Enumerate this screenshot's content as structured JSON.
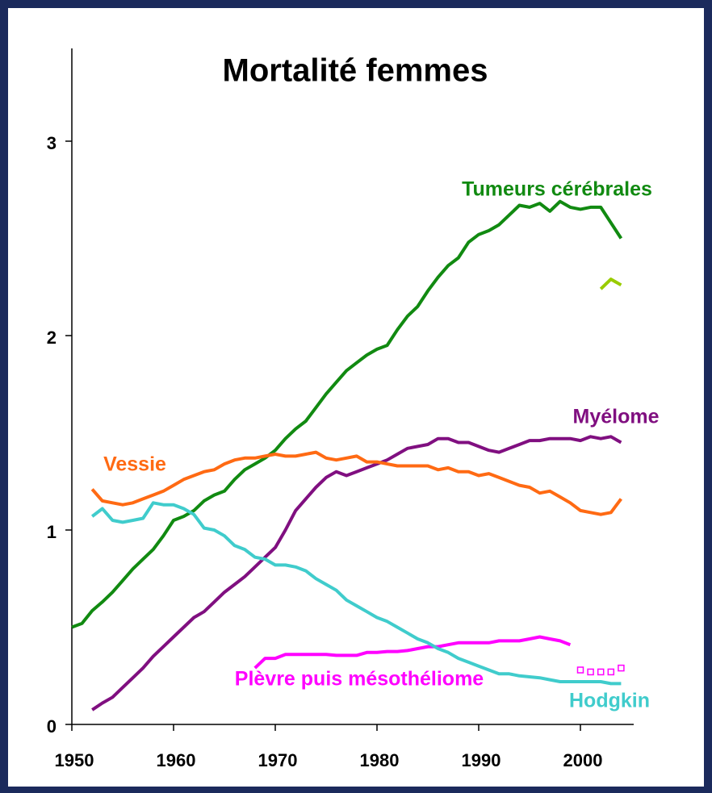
{
  "chart_data": {
    "type": "line",
    "title": "Mortalité femmes",
    "x": [
      1950,
      1951,
      1952,
      1953,
      1954,
      1955,
      1956,
      1957,
      1958,
      1959,
      1960,
      1961,
      1962,
      1963,
      1964,
      1965,
      1966,
      1967,
      1968,
      1969,
      1970,
      1971,
      1972,
      1973,
      1974,
      1975,
      1976,
      1977,
      1978,
      1979,
      1980,
      1981,
      1982,
      1983,
      1984,
      1985,
      1986,
      1987,
      1988,
      1989,
      1990,
      1991,
      1992,
      1993,
      1994,
      1995,
      1996,
      1997,
      1998,
      1999,
      2000,
      2001,
      2002,
      2003,
      2004
    ],
    "xlim": [
      1950,
      2005
    ],
    "xticks": [
      1950,
      1960,
      1970,
      1980,
      1990,
      2000
    ],
    "ylim": [
      0,
      3.5
    ],
    "yticks": [
      0,
      1,
      2,
      3
    ],
    "series": [
      {
        "name": "Tumeurs cérébrales",
        "color": "#118a11",
        "values": [
          0.5,
          0.52,
          0.585,
          0.63,
          0.68,
          0.74,
          0.8,
          0.85,
          0.9,
          0.97,
          1.05,
          1.07,
          1.1,
          1.15,
          1.18,
          1.2,
          1.26,
          1.31,
          1.34,
          1.37,
          1.41,
          1.47,
          1.52,
          1.56,
          1.63,
          1.7,
          1.76,
          1.82,
          1.86,
          1.9,
          1.93,
          1.95,
          2.03,
          2.1,
          2.15,
          2.23,
          2.3,
          2.36,
          2.4,
          2.48,
          2.52,
          2.54,
          2.57,
          2.62,
          2.67,
          2.66,
          2.68,
          2.64,
          2.69,
          2.66,
          2.65,
          2.66,
          2.66,
          2.58,
          2.5
        ]
      },
      {
        "name": "Myélome",
        "color": "#800f80",
        "values": [
          null,
          null,
          0.075,
          0.11,
          0.14,
          0.19,
          0.24,
          0.29,
          0.35,
          0.4,
          0.45,
          0.5,
          0.55,
          0.58,
          0.63,
          0.68,
          0.72,
          0.76,
          0.81,
          0.86,
          0.91,
          1.0,
          1.1,
          1.16,
          1.22,
          1.27,
          1.3,
          1.28,
          1.3,
          1.32,
          1.34,
          1.36,
          1.39,
          1.42,
          1.43,
          1.44,
          1.47,
          1.47,
          1.45,
          1.45,
          1.43,
          1.41,
          1.4,
          1.42,
          1.44,
          1.46,
          1.46,
          1.47,
          1.47,
          1.47,
          1.46,
          1.48,
          1.47,
          1.48,
          1.45
        ]
      },
      {
        "name": "Vessie",
        "color": "#ff6a13",
        "values": [
          null,
          null,
          1.21,
          1.15,
          1.14,
          1.13,
          1.14,
          1.16,
          1.18,
          1.2,
          1.23,
          1.26,
          1.28,
          1.3,
          1.31,
          1.34,
          1.36,
          1.37,
          1.37,
          1.38,
          1.39,
          1.38,
          1.38,
          1.39,
          1.4,
          1.37,
          1.36,
          1.37,
          1.38,
          1.35,
          1.35,
          1.34,
          1.33,
          1.33,
          1.33,
          1.33,
          1.31,
          1.32,
          1.3,
          1.3,
          1.28,
          1.29,
          1.27,
          1.25,
          1.23,
          1.22,
          1.19,
          1.2,
          1.17,
          1.14,
          1.1,
          1.09,
          1.08,
          1.09,
          1.16
        ]
      },
      {
        "name": "Plèvre puis mésothéliome",
        "color": "#ff00ff",
        "values": [
          null,
          null,
          null,
          null,
          null,
          null,
          null,
          null,
          null,
          null,
          null,
          null,
          null,
          null,
          null,
          null,
          null,
          null,
          0.29,
          0.34,
          0.34,
          0.36,
          0.36,
          0.36,
          0.36,
          0.36,
          0.355,
          0.355,
          0.355,
          0.37,
          0.37,
          0.375,
          0.375,
          0.38,
          0.39,
          0.4,
          0.4,
          0.41,
          0.42,
          0.42,
          0.42,
          0.42,
          0.43,
          0.43,
          0.43,
          0.44,
          0.45,
          0.44,
          0.43,
          0.41,
          null,
          null,
          null,
          null,
          null
        ]
      },
      {
        "name": "Hodgkin",
        "color": "#40cccc",
        "values": [
          null,
          null,
          1.07,
          1.11,
          1.05,
          1.04,
          1.05,
          1.06,
          1.14,
          1.13,
          1.13,
          1.11,
          1.08,
          1.01,
          1.0,
          0.97,
          0.92,
          0.9,
          0.86,
          0.85,
          0.82,
          0.82,
          0.81,
          0.79,
          0.75,
          0.72,
          0.69,
          0.64,
          0.61,
          0.58,
          0.55,
          0.53,
          0.5,
          0.47,
          0.44,
          0.42,
          0.39,
          0.37,
          0.34,
          0.32,
          0.3,
          0.28,
          0.26,
          0.26,
          0.25,
          0.245,
          0.24,
          0.23,
          0.22,
          0.22,
          0.22,
          0.22,
          0.22,
          0.21,
          0.21
        ]
      },
      {
        "color": "#99cc00",
        "values": [
          null,
          null,
          null,
          null,
          null,
          null,
          null,
          null,
          null,
          null,
          null,
          null,
          null,
          null,
          null,
          null,
          null,
          null,
          null,
          null,
          null,
          null,
          null,
          null,
          null,
          null,
          null,
          null,
          null,
          null,
          null,
          null,
          null,
          null,
          null,
          null,
          null,
          null,
          null,
          null,
          null,
          null,
          null,
          null,
          null,
          null,
          null,
          null,
          null,
          null,
          null,
          null,
          2.24,
          2.29,
          2.26
        ]
      },
      {
        "color": "#ff00ff",
        "marker": "square",
        "values": [
          null,
          null,
          null,
          null,
          null,
          null,
          null,
          null,
          null,
          null,
          null,
          null,
          null,
          null,
          null,
          null,
          null,
          null,
          null,
          null,
          null,
          null,
          null,
          null,
          null,
          null,
          null,
          null,
          null,
          null,
          null,
          null,
          null,
          null,
          null,
          null,
          null,
          null,
          null,
          null,
          null,
          null,
          null,
          null,
          null,
          null,
          null,
          null,
          null,
          null,
          0.28,
          0.27,
          0.27,
          0.27,
          0.29
        ]
      }
    ]
  }
}
